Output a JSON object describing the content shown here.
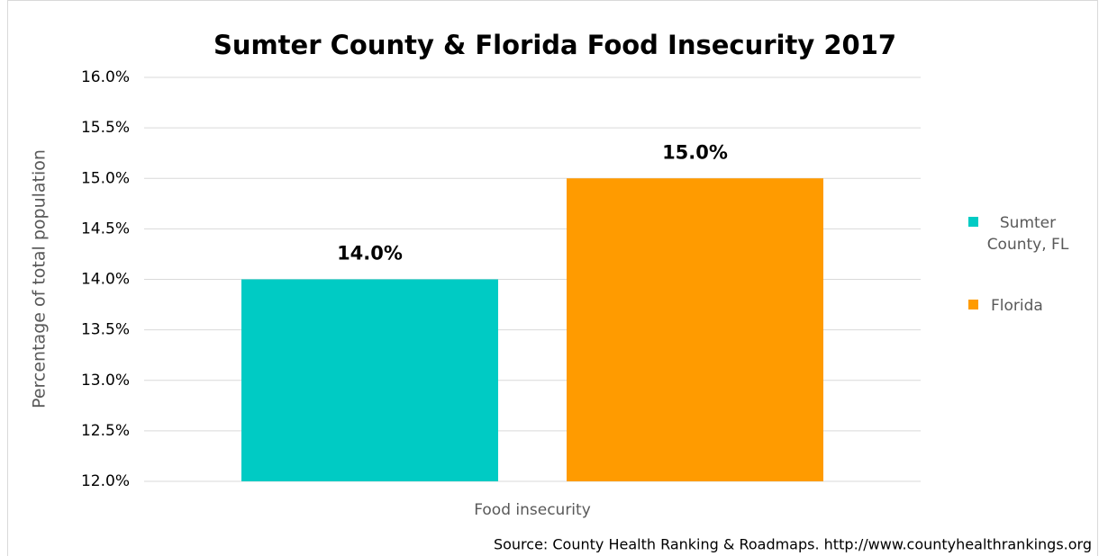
{
  "chart_data": {
    "type": "bar",
    "title": "Sumter County & Florida Food Insecurity 2017",
    "y_axis_label": "Percentage of total population",
    "categories": [
      "Food insecurity"
    ],
    "series": [
      {
        "name": "Sumter County, FL",
        "color": "#00cbc4",
        "values": [
          14
        ],
        "value_labels": [
          "14.0%"
        ]
      },
      {
        "name": "Florida",
        "color": "#ff9b00",
        "values": [
          15
        ],
        "value_labels": [
          "15.0%"
        ]
      }
    ],
    "ylim": [
      12,
      16
    ],
    "yticks": [
      {
        "value": 12,
        "label": "12.0%"
      },
      {
        "value": 12.5,
        "label": "12.5%"
      },
      {
        "value": 13,
        "label": "13.0%"
      },
      {
        "value": 13.5,
        "label": "13.5%"
      },
      {
        "value": 14,
        "label": "14.0%"
      },
      {
        "value": 14.5,
        "label": "14.5%"
      },
      {
        "value": 15,
        "label": "15.0%"
      },
      {
        "value": 15.5,
        "label": "15.5%"
      },
      {
        "value": 16,
        "label": "16.0%"
      }
    ],
    "grid": true,
    "legend": "right",
    "source": "Source: County Health Ranking & Roadmaps. http://www.countyhealthrankings.org"
  }
}
